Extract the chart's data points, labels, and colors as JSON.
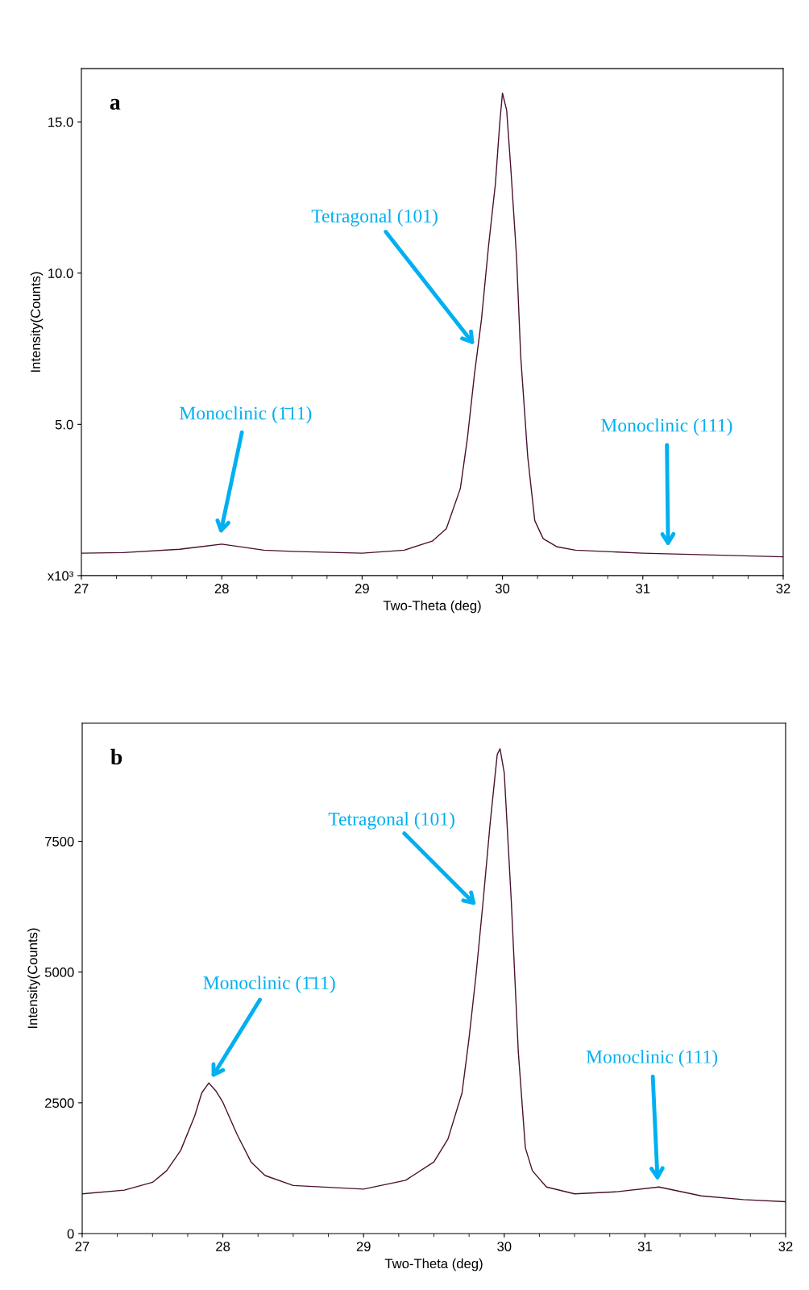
{
  "chart_data": [
    {
      "type": "line",
      "xlabel": "Two-Theta (deg)",
      "ylabel": "Intensity(Counts)",
      "x": [
        27,
        27.3,
        27.7,
        28.0,
        28.3,
        28.5,
        29.0,
        29.3,
        29.5,
        29.6,
        29.7,
        29.75,
        29.8,
        29.85,
        29.9,
        29.95,
        29.98,
        30.0,
        30.03,
        30.06,
        30.1,
        30.13,
        30.18,
        30.23,
        30.29,
        30.39,
        30.52,
        31.0,
        31.5,
        32
      ],
      "series": [
        {
          "color": "#4a1030",
          "values": [
            0.74,
            0.76,
            0.87,
            1.04,
            0.84,
            0.8,
            0.74,
            0.84,
            1.14,
            1.55,
            2.88,
            4.53,
            6.64,
            8.45,
            10.86,
            12.97,
            14.92,
            15.95,
            15.38,
            13.42,
            10.56,
            7.24,
            3.93,
            1.82,
            1.22,
            0.95,
            0.84,
            0.74,
            0.68,
            0.62
          ]
        }
      ],
      "xlim": [
        27,
        32
      ],
      "xticks": [
        27,
        28,
        29,
        30,
        31,
        32
      ],
      "ylim": [
        0,
        16.76
      ],
      "yticks": [
        {
          "value": 0,
          "label": "x10³"
        },
        {
          "value": 5,
          "label": "5.0"
        },
        {
          "value": 10,
          "label": "10.0"
        },
        {
          "value": 15,
          "label": "15.0"
        }
      ],
      "grid": false,
      "legend": false,
      "annotations": [
        "a",
        "Tetragonal (101)",
        "Monoclinic (1̄11)",
        "Monoclinic (111)"
      ]
    },
    {
      "type": "line",
      "xlabel": "Two-Theta (deg)",
      "ylabel": "Intensity(Counts)",
      "x": [
        27,
        27.3,
        27.5,
        27.6,
        27.7,
        27.8,
        27.85,
        27.9,
        27.95,
        28.0,
        28.1,
        28.2,
        28.3,
        28.5,
        29.0,
        29.3,
        29.5,
        29.6,
        29.7,
        29.75,
        29.8,
        29.85,
        29.9,
        29.95,
        29.97,
        30.0,
        30.05,
        30.1,
        30.15,
        30.2,
        30.3,
        30.5,
        30.8,
        31.1,
        31.4,
        31.7,
        32
      ],
      "series": [
        {
          "color": "#4a1030",
          "values": [
            760,
            830,
            980,
            1200,
            1590,
            2250,
            2690,
            2880,
            2730,
            2510,
            1900,
            1370,
            1110,
            920,
            850,
            1020,
            1370,
            1810,
            2690,
            3740,
            4960,
            6360,
            7850,
            9160,
            9270,
            8810,
            6360,
            3470,
            1640,
            1200,
            890,
            760,
            800,
            890,
            720,
            650,
            610
          ]
        }
      ],
      "xlim": [
        27,
        32
      ],
      "xticks": [
        27,
        28,
        29,
        30,
        31,
        32
      ],
      "ylim": [
        0,
        9758
      ],
      "yticks": [
        0,
        2500,
        5000,
        7500
      ],
      "grid": false,
      "legend": false,
      "annotations": [
        "b",
        "Tetragonal (101)",
        "Monoclinic (1̄11)",
        "Monoclinic (111)"
      ]
    }
  ]
}
